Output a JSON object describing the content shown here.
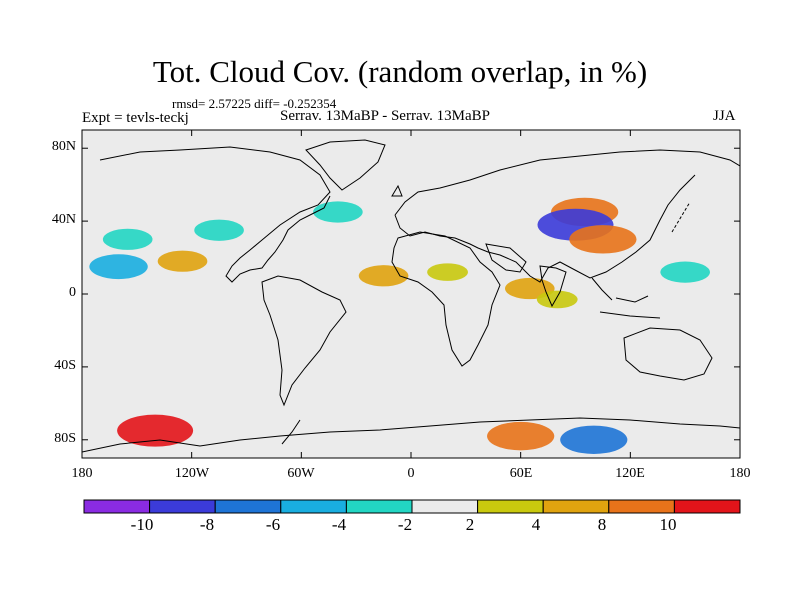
{
  "title": "Tot. Cloud Cov. (random overlap, in %)",
  "stats_line": "rmsd= 2.57225 diff= -0.252354",
  "experiment_label": "Expt = tevls-teckj",
  "comparison_label": "Serrav.   13MaBP - Serrav.   13MaBP",
  "season_label": "JJA",
  "y_ticks": [
    "80N",
    "40N",
    "0",
    "40S",
    "80S"
  ],
  "x_ticks": [
    "180",
    "120W",
    "60W",
    "0",
    "60E",
    "120E",
    "180"
  ],
  "colorbar": {
    "labels": [
      "-10",
      "-8",
      "-6",
      "-4",
      "-2",
      "2",
      "4",
      "8",
      "10"
    ],
    "colors": [
      "#8a2be2",
      "#3b3bd9",
      "#1e74d6",
      "#19aee0",
      "#22d6c3",
      "#ebebeb",
      "#c9c90e",
      "#e0a30f",
      "#e8731a",
      "#e3141a"
    ]
  },
  "chart_data": {
    "type": "heatmap",
    "variable": "Total cloud cover difference (random overlap)",
    "units": "%",
    "projection": "cylindrical equidistant",
    "lon_range": [
      -180,
      180
    ],
    "lat_range": [
      -90,
      90
    ],
    "contour_levels": [
      -10,
      -8,
      -6,
      -4,
      -2,
      2,
      4,
      8,
      10
    ],
    "rmsd": 2.57225,
    "diff": -0.252354,
    "anomalies": [
      {
        "lon": -160,
        "lat": 15,
        "value": -6
      },
      {
        "lon": -155,
        "lat": 30,
        "value": -4
      },
      {
        "lon": -125,
        "lat": 18,
        "value": 4
      },
      {
        "lon": -105,
        "lat": 35,
        "value": -4
      },
      {
        "lon": -40,
        "lat": 45,
        "value": -4
      },
      {
        "lon": -15,
        "lat": 10,
        "value": 4
      },
      {
        "lon": 20,
        "lat": 12,
        "value": 2
      },
      {
        "lon": 65,
        "lat": 3,
        "value": 4
      },
      {
        "lon": 80,
        "lat": -3,
        "value": 2
      },
      {
        "lon": 95,
        "lat": 45,
        "value": 8
      },
      {
        "lon": 90,
        "lat": 38,
        "value": -10
      },
      {
        "lon": 105,
        "lat": 30,
        "value": 8
      },
      {
        "lon": 150,
        "lat": 12,
        "value": -4
      },
      {
        "lon": -140,
        "lat": -75,
        "value": 10
      },
      {
        "lon": 60,
        "lat": -78,
        "value": 8
      },
      {
        "lon": 100,
        "lat": -80,
        "value": -8
      }
    ]
  }
}
